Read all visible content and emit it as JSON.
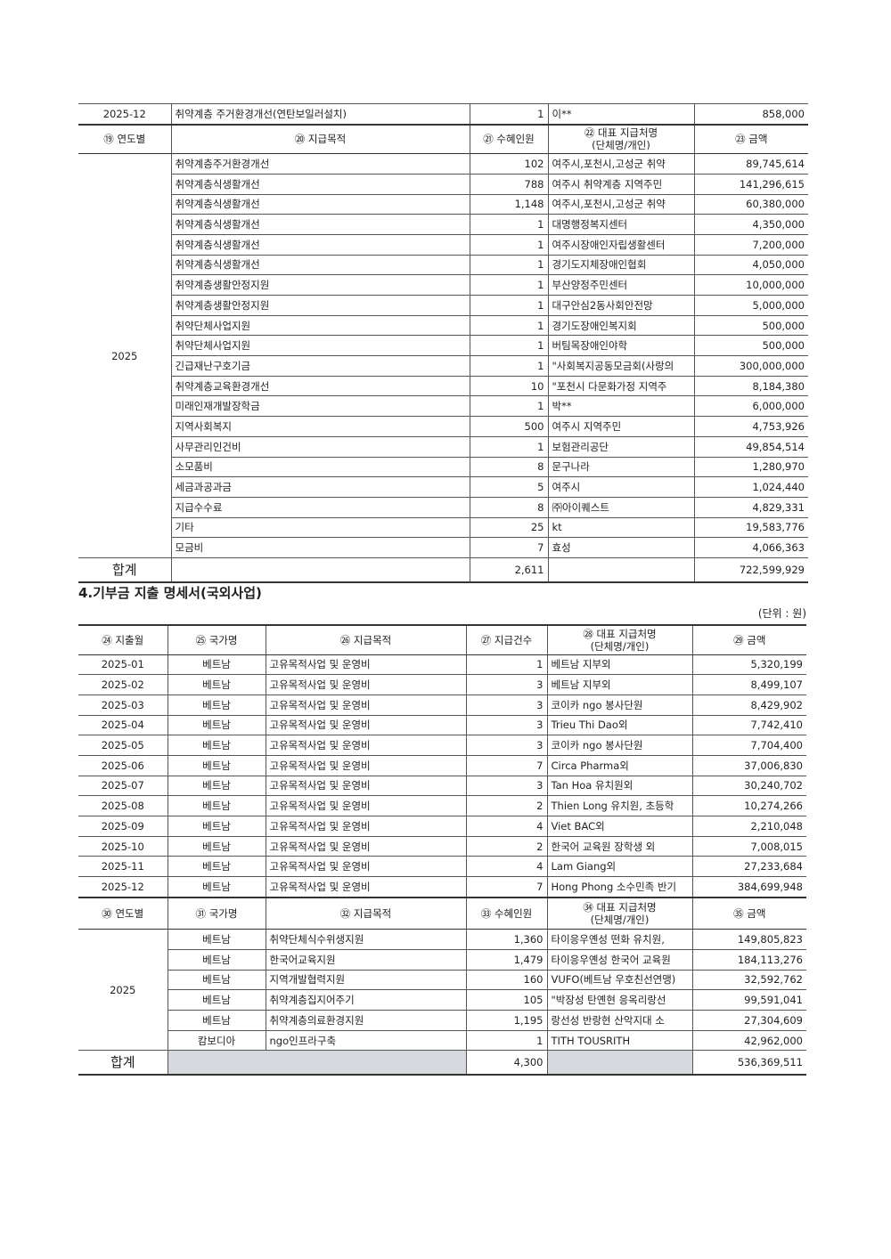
{
  "carry_row": {
    "month": "2025-12",
    "purpose": "취약계층 주거환경개선(연탄보일러설치)",
    "count": "1",
    "payee": "이**",
    "amount": "858,000"
  },
  "domestic_yearly": {
    "headers": {
      "year": "⑲ 연도별",
      "purpose": "⑳ 지급목적",
      "recipients": "㉑ 수혜인원",
      "payee": "㉒ 대표 지급처명",
      "payee_sub": "(단체명/개인)",
      "amount": "㉓ 금액"
    },
    "year": "2025",
    "rows": [
      {
        "purpose": "취약계층주거환경개선",
        "recipients": "102",
        "payee": "여주시,포천시,고성군 취약",
        "amount": "89,745,614"
      },
      {
        "purpose": "취약계층식생활개선",
        "recipients": "788",
        "payee": "여주시 취약계층 지역주민",
        "amount": "141,296,615"
      },
      {
        "purpose": "취약계층식생활개선",
        "recipients": "1,148",
        "payee": "여주시,포천시,고성군 취약",
        "amount": "60,380,000"
      },
      {
        "purpose": "취약계층식생활개선",
        "recipients": "1",
        "payee": "대명행정복지센터",
        "amount": "4,350,000"
      },
      {
        "purpose": "취약계층식생활개선",
        "recipients": "1",
        "payee": "여주시장애인자립생활센터",
        "amount": "7,200,000"
      },
      {
        "purpose": "취약계층식생활개선",
        "recipients": "1",
        "payee": "경기도지체장애인협회",
        "amount": "4,050,000"
      },
      {
        "purpose": "취약계층생활안정지원",
        "recipients": "1",
        "payee": "부산양정주민센터",
        "amount": "10,000,000"
      },
      {
        "purpose": "취약계층생활안정지원",
        "recipients": "1",
        "payee": "대구안심2동사회안전망",
        "amount": "5,000,000"
      },
      {
        "purpose": "취약단체사업지원",
        "recipients": "1",
        "payee": "경기도장애인복지회",
        "amount": "500,000"
      },
      {
        "purpose": "취약단체사업지원",
        "recipients": "1",
        "payee": "버팀목장애인야학",
        "amount": "500,000"
      },
      {
        "purpose": "긴급재난구호기금",
        "recipients": "1",
        "payee": "\"사회복지공동모금회(사랑의",
        "amount": "300,000,000"
      },
      {
        "purpose": "취약계층교육환경개선",
        "recipients": "10",
        "payee": "\"포천시 다문화가정 지역주",
        "amount": "8,184,380"
      },
      {
        "purpose": "미래인재개발장학금",
        "recipients": "1",
        "payee": "박**",
        "amount": "6,000,000"
      },
      {
        "purpose": "지역사회복지",
        "recipients": "500",
        "payee": "여주시 지역주민",
        "amount": "4,753,926"
      },
      {
        "purpose": "사무관리인건비",
        "recipients": "1",
        "payee": "보험관리공단",
        "amount": "49,854,514"
      },
      {
        "purpose": "소모품비",
        "recipients": "8",
        "payee": "문구나라",
        "amount": "1,280,970"
      },
      {
        "purpose": "세금과공과금",
        "recipients": "5",
        "payee": "여주시",
        "amount": "1,024,440"
      },
      {
        "purpose": "지급수수료",
        "recipients": "8",
        "payee": "㈜아이퀘스트",
        "amount": "4,829,331"
      },
      {
        "purpose": "기타",
        "recipients": "25",
        "payee": "kt",
        "amount": "19,583,776"
      },
      {
        "purpose": "모금비",
        "recipients": "7",
        "payee": "효성",
        "amount": "4,066,363"
      }
    ],
    "total": {
      "label": "합계",
      "recipients": "2,611",
      "amount": "722,599,929"
    }
  },
  "section_title": "4.기부금 지출 명세서(국외사업)",
  "unit": "(단위 : 원)",
  "overseas_monthly": {
    "headers": {
      "month": "㉔ 지출월",
      "country": "㉕ 국가명",
      "purpose": "㉖ 지급목적",
      "count": "㉗ 지급건수",
      "payee": "㉘ 대표 지급처명",
      "payee_sub": "(단체명/개인)",
      "amount": "㉙ 금액"
    },
    "rows": [
      {
        "month": "2025-01",
        "country": "베트남",
        "purpose": "고유목적사업 및 운영비",
        "count": "1",
        "payee": "베트남 지부외",
        "amount": "5,320,199"
      },
      {
        "month": "2025-02",
        "country": "베트남",
        "purpose": "고유목적사업 및 운영비",
        "count": "3",
        "payee": "베트남 지부외",
        "amount": "8,499,107"
      },
      {
        "month": "2025-03",
        "country": "베트남",
        "purpose": "고유목적사업 및 운영비",
        "count": "3",
        "payee": "코이카 ngo 봉사단원",
        "amount": "8,429,902"
      },
      {
        "month": "2025-04",
        "country": "베트남",
        "purpose": "고유목적사업 및 운영비",
        "count": "3",
        "payee": "Trieu Thi Dao외",
        "amount": "7,742,410"
      },
      {
        "month": "2025-05",
        "country": "베트남",
        "purpose": "고유목적사업 및 운영비",
        "count": "3",
        "payee": "코이카 ngo 봉사단원",
        "amount": "7,704,400"
      },
      {
        "month": "2025-06",
        "country": "베트남",
        "purpose": "고유목적사업 및 운영비",
        "count": "7",
        "payee": "Circa Pharma외",
        "amount": "37,006,830"
      },
      {
        "month": "2025-07",
        "country": "베트남",
        "purpose": "고유목적사업 및 운영비",
        "count": "3",
        "payee": "Tan Hoa 유치원외",
        "amount": "30,240,702"
      },
      {
        "month": "2025-08",
        "country": "베트남",
        "purpose": "고유목적사업 및 운영비",
        "count": "2",
        "payee": "Thien Long 유치원, 초등학",
        "amount": "10,274,266"
      },
      {
        "month": "2025-09",
        "country": "베트남",
        "purpose": "고유목적사업 및 운영비",
        "count": "4",
        "payee": "Viet BAC외",
        "amount": "2,210,048"
      },
      {
        "month": "2025-10",
        "country": "베트남",
        "purpose": "고유목적사업 및 운영비",
        "count": "2",
        "payee": "한국어 교육원 장학생 외",
        "amount": "7,008,015"
      },
      {
        "month": "2025-11",
        "country": "베트남",
        "purpose": "고유목적사업 및 운영비",
        "count": "4",
        "payee": "Lam Giang외",
        "amount": "27,233,684"
      },
      {
        "month": "2025-12",
        "country": "베트남",
        "purpose": "고유목적사업 및 운영비",
        "count": "7",
        "payee": "Hong Phong 소수민족 반기",
        "amount": "384,699,948"
      }
    ]
  },
  "overseas_yearly": {
    "headers": {
      "year": "㉚ 연도별",
      "country": "㉛ 국가명",
      "purpose": "㉜ 지급목적",
      "recipients": "㉝ 수혜인원",
      "payee": "㉞ 대표 지급처명",
      "payee_sub": "(단체명/개인)",
      "amount": "㉟ 금액"
    },
    "year": "2025",
    "rows": [
      {
        "country": "베트남",
        "purpose": "취약단체식수위생지원",
        "recipients": "1,360",
        "payee": "타이응우옌성 떤화 유치원,",
        "amount": "149,805,823"
      },
      {
        "country": "베트남",
        "purpose": "한국어교육지원",
        "recipients": "1,479",
        "payee": "타이응우옌성 한국어 교육원",
        "amount": "184,113,276"
      },
      {
        "country": "베트남",
        "purpose": "지역개발협력지원",
        "recipients": "160",
        "payee": "VUFO(베트남 우호친선연맹)",
        "amount": "32,592,762"
      },
      {
        "country": "베트남",
        "purpose": "취약계층집지어주기",
        "recipients": "105",
        "payee": "\"박장성 탄옌현 응옥리랑선",
        "amount": "99,591,041"
      },
      {
        "country": "베트남",
        "purpose": "취약계층의료환경지원",
        "recipients": "1,195",
        "payee": "랑선성 반랑현 산악지대 소",
        "amount": "27,304,609"
      },
      {
        "country": "캄보디아",
        "purpose": "ngo인프라구축",
        "recipients": "1",
        "payee": "TITH TOUSRITH",
        "amount": "42,962,000"
      }
    ],
    "total": {
      "label": "합계",
      "recipients": "4,300",
      "amount": "536,369,511"
    }
  }
}
